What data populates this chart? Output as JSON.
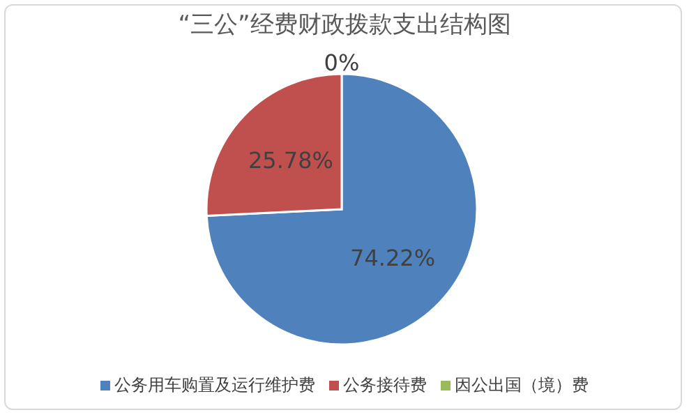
{
  "chart_data": {
    "type": "pie",
    "title": "“三公”经费财政拨款支出结构图",
    "categories": [
      "公务用车购置及运行维护费",
      "公务接待费",
      "因公出国（境）费"
    ],
    "values": [
      74.22,
      25.78,
      0
    ],
    "colors": [
      "#4f81bd",
      "#c0504d",
      "#9bbb59"
    ],
    "value_labels": [
      "74.22%",
      "25.78%",
      "0%"
    ],
    "legend": "bottom"
  }
}
